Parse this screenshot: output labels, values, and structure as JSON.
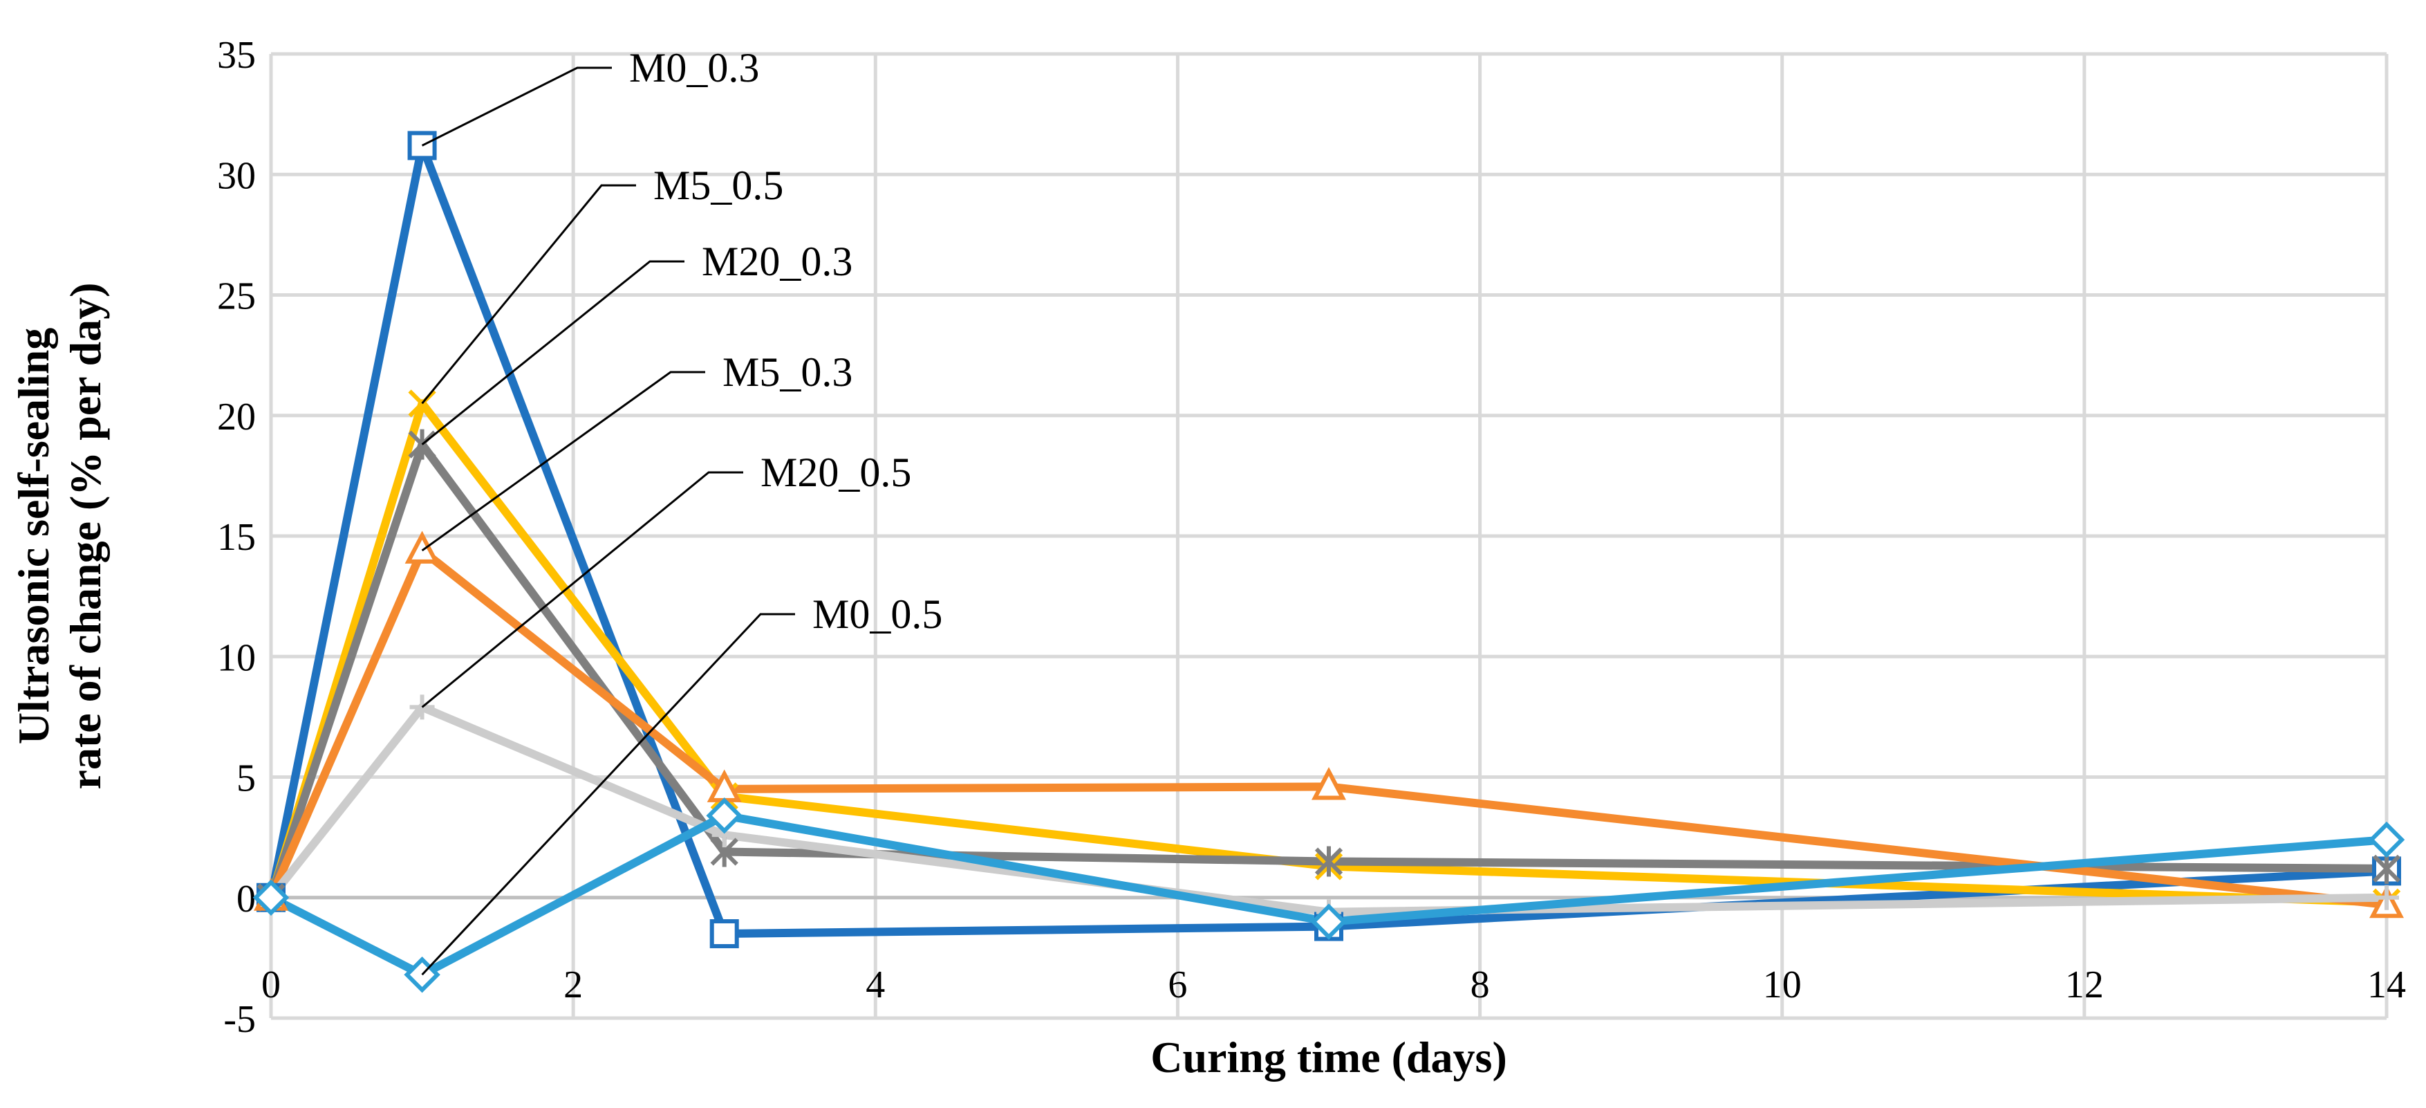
{
  "chart_data": {
    "type": "line",
    "title": "",
    "xlabel": "Curing time (days)",
    "ylabel": [
      "Ultrasonic self-sealing",
      "rate of change (% per day)"
    ],
    "xlim": [
      0,
      14
    ],
    "ylim": [
      -5,
      35
    ],
    "xticks": [
      0,
      2,
      4,
      6,
      8,
      10,
      12,
      14
    ],
    "yticks": [
      -5,
      0,
      5,
      10,
      15,
      20,
      25,
      30,
      35
    ],
    "grid": true,
    "x": [
      0,
      1,
      3,
      7,
      14
    ],
    "series": [
      {
        "name": "M0_0.3",
        "color": "#1F72C0",
        "marker": "square",
        "values": [
          0,
          31.2,
          -1.5,
          -1.2,
          1.1
        ]
      },
      {
        "name": "M5_0.5",
        "color": "#FFC000",
        "marker": "x",
        "values": [
          0,
          20.5,
          4.2,
          1.3,
          -0.2
        ]
      },
      {
        "name": "M20_0.3",
        "color": "#7F7F7F",
        "marker": "star",
        "values": [
          0,
          18.8,
          1.9,
          1.5,
          1.2
        ]
      },
      {
        "name": "M5_0.3",
        "color": "#F58A2E",
        "marker": "triangle",
        "values": [
          0,
          14.4,
          4.5,
          4.6,
          -0.3
        ]
      },
      {
        "name": "M20_0.5",
        "color": "#CCCCCC",
        "marker": "plus",
        "values": [
          0,
          7.9,
          2.6,
          -0.6,
          0
        ]
      },
      {
        "name": "M0_0.5",
        "color": "#2E9FD6",
        "marker": "diamond",
        "values": [
          0,
          -3.2,
          3.4,
          -1.0,
          2.4
        ]
      }
    ],
    "annotations": [
      {
        "text": "M0_0.3",
        "series": "M0_0.3",
        "point_index": 1
      },
      {
        "text": "M5_0.5",
        "series": "M5_0.5",
        "point_index": 1
      },
      {
        "text": "M20_0.3",
        "series": "M20_0.3",
        "point_index": 1
      },
      {
        "text": "M5_0.3",
        "series": "M5_0.3",
        "point_index": 1
      },
      {
        "text": "M20_0.5",
        "series": "M20_0.5",
        "point_index": 1
      },
      {
        "text": "M0_0.5",
        "series": "M0_0.5",
        "point_index": 1
      }
    ]
  }
}
